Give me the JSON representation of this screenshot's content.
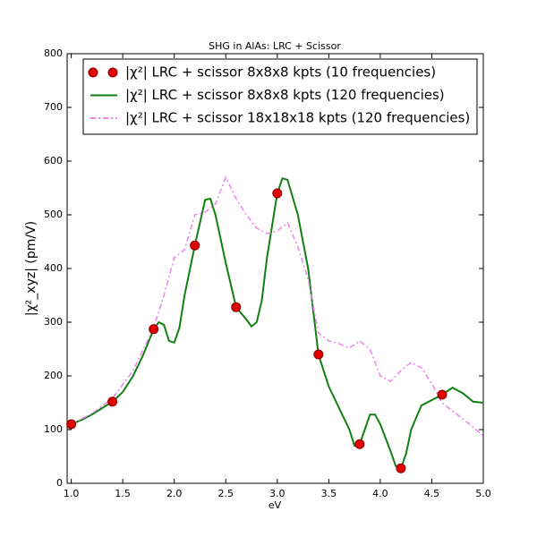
{
  "chart_data": {
    "type": "line",
    "title": "SHG in AlAs: LRC + Scissor",
    "x_label": "eV",
    "y_label": "|χ²_xyz| (pm/V)",
    "xlim": [
      0.96,
      5.0
    ],
    "ylim": [
      0,
      800
    ],
    "xticks": [
      {
        "value": 1,
        "label": "1.0"
      },
      1.5,
      {
        "value": 2,
        "label": "2.0"
      },
      2.5,
      {
        "value": 3,
        "label": "3.0"
      },
      3.5,
      {
        "value": 4,
        "label": "4.0"
      },
      4.5,
      {
        "value": 5,
        "label": "5.0"
      }
    ],
    "yticks": [
      0,
      100,
      200,
      300,
      400,
      500,
      600,
      700,
      800
    ],
    "legend": "upper left",
    "series": [
      {
        "name": "|χ²| LRC + scissor 8x8x8 kpts (10 frequencies)",
        "kind": "scatter",
        "color": "#e00000",
        "x": [
          1.0,
          1.4,
          1.8,
          2.2,
          2.6,
          3.0,
          3.4,
          3.8,
          4.2,
          4.6
        ],
        "values": [
          110,
          152,
          287,
          443,
          328,
          540,
          240,
          73,
          28,
          165
        ]
      },
      {
        "name": "|χ²| LRC + scissor 8x8x8 kpts (120 frequencies)",
        "kind": "line",
        "color": "#108010",
        "x": [
          1.0,
          1.1,
          1.2,
          1.3,
          1.4,
          1.5,
          1.6,
          1.7,
          1.8,
          1.85,
          1.9,
          1.95,
          2.0,
          2.05,
          2.1,
          2.2,
          2.3,
          2.35,
          2.4,
          2.5,
          2.6,
          2.7,
          2.75,
          2.8,
          2.85,
          2.9,
          3.0,
          3.05,
          3.1,
          3.2,
          3.3,
          3.4,
          3.5,
          3.6,
          3.7,
          3.75,
          3.8,
          3.85,
          3.9,
          3.95,
          4.0,
          4.1,
          4.15,
          4.2,
          4.25,
          4.3,
          4.4,
          4.5,
          4.6,
          4.7,
          4.8,
          4.9,
          5.0
        ],
        "values": [
          110,
          118,
          128,
          140,
          152,
          170,
          200,
          240,
          287,
          300,
          295,
          265,
          262,
          290,
          350,
          443,
          528,
          530,
          500,
          410,
          328,
          305,
          292,
          300,
          340,
          420,
          540,
          568,
          565,
          500,
          400,
          240,
          180,
          140,
          100,
          70,
          73,
          100,
          128,
          128,
          110,
          60,
          32,
          28,
          55,
          100,
          145,
          155,
          165,
          178,
          168,
          152,
          150
        ]
      },
      {
        "name": "|χ²| LRC + scissor 18x18x18 kpts (120 frequencies)",
        "kind": "dashed",
        "color": "#ee82ee",
        "x": [
          1.0,
          1.2,
          1.4,
          1.6,
          1.8,
          1.9,
          2.0,
          2.1,
          2.2,
          2.3,
          2.4,
          2.5,
          2.6,
          2.7,
          2.8,
          2.9,
          3.0,
          3.1,
          3.2,
          3.3,
          3.4,
          3.5,
          3.6,
          3.7,
          3.8,
          3.9,
          4.0,
          4.1,
          4.2,
          4.3,
          4.4,
          4.5,
          4.6,
          4.7,
          4.8,
          4.9,
          5.0
        ],
        "values": [
          110,
          130,
          158,
          210,
          290,
          350,
          420,
          435,
          500,
          505,
          520,
          570,
          530,
          500,
          475,
          465,
          470,
          485,
          440,
          380,
          280,
          265,
          260,
          252,
          265,
          250,
          200,
          190,
          210,
          225,
          215,
          185,
          150,
          135,
          120,
          105,
          88
        ]
      }
    ]
  }
}
